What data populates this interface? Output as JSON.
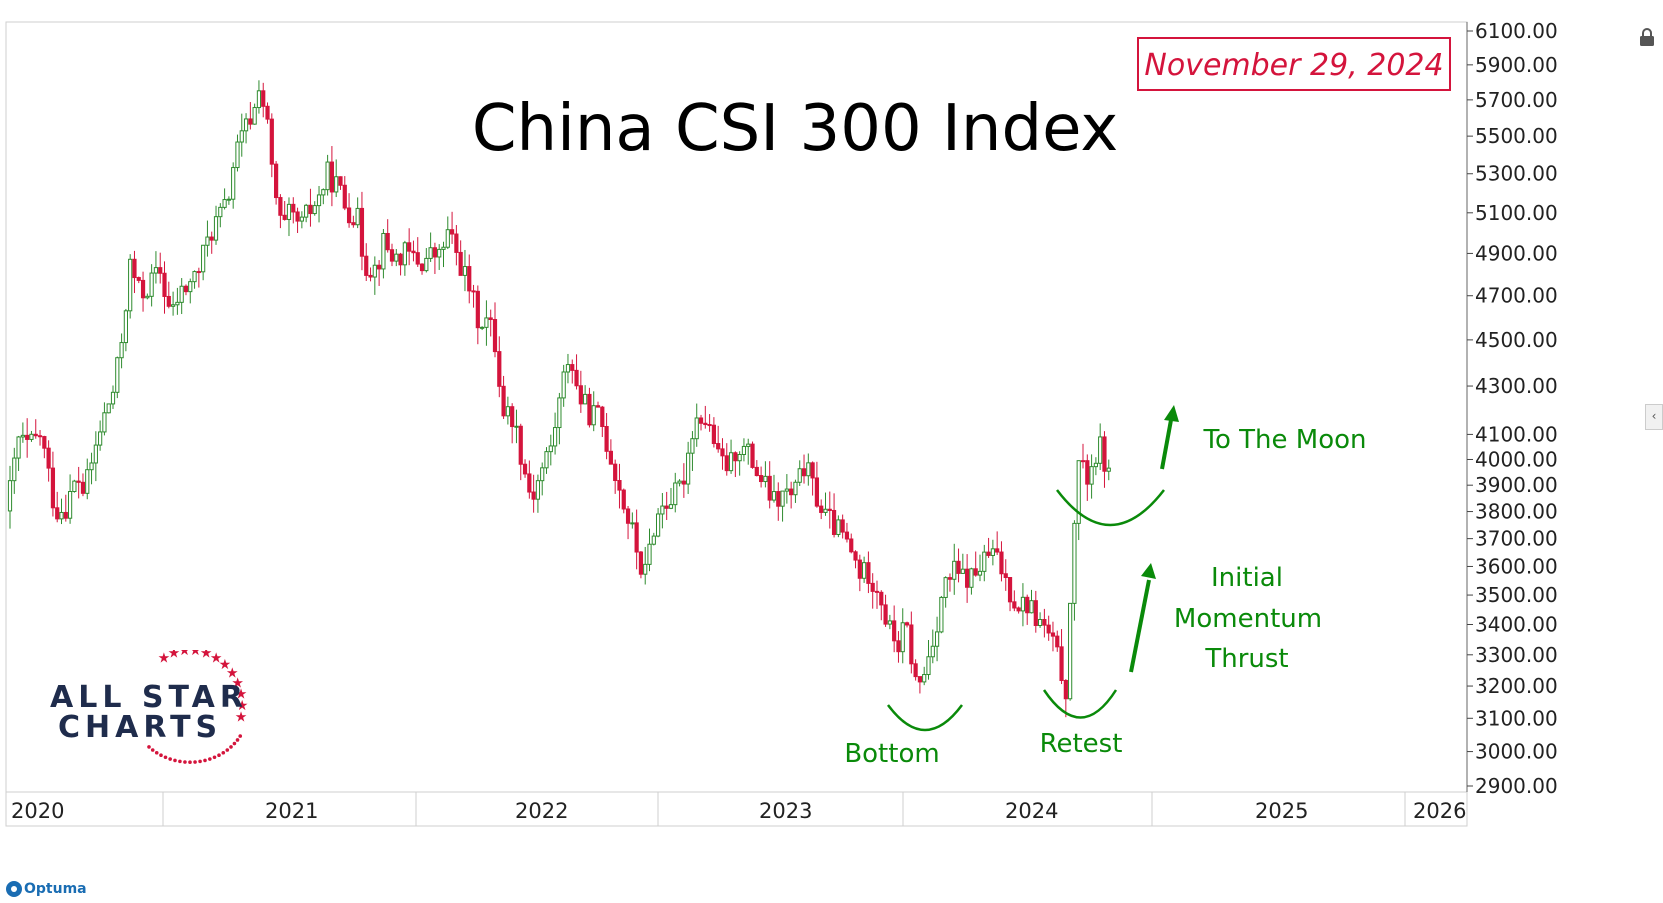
{
  "chart_data": {
    "type": "candlestick",
    "title": "China CSI 300 Index",
    "date_label": "November 29, 2024",
    "ylim": [
      2900,
      6100
    ],
    "y_scale": "log",
    "y_ticks": [
      "6100.00",
      "5900.00",
      "5700.00",
      "5500.00",
      "5300.00",
      "5100.00",
      "4900.00",
      "4700.00",
      "4500.00",
      "4300.00",
      "4100.00",
      "4000.00",
      "3900.00",
      "3800.00",
      "3700.00",
      "3600.00",
      "3500.00",
      "3400.00",
      "3300.00",
      "3200.00",
      "3100.00",
      "3000.00",
      "2900.00"
    ],
    "x_ticks": [
      "2020",
      "2021",
      "2022",
      "2023",
      "2024",
      "2025",
      "2026"
    ],
    "xlim": [
      "2020-01-01",
      "2026-07-01"
    ],
    "up_color": "#2e8b2e",
    "down_color": "#d4143c",
    "close_path": [
      [
        "2020-01-01",
        3880
      ],
      [
        "2020-01-15",
        4080
      ],
      [
        "2020-02-01",
        4050
      ],
      [
        "2020-02-20",
        4100
      ],
      [
        "2020-03-01",
        3980
      ],
      [
        "2020-03-15",
        3800
      ],
      [
        "2020-04-01",
        3820
      ],
      [
        "2020-04-20",
        3930
      ],
      [
        "2020-05-01",
        3870
      ],
      [
        "2020-05-20",
        4050
      ],
      [
        "2020-06-01",
        4160
      ],
      [
        "2020-06-20",
        4300
      ],
      [
        "2020-07-01",
        4500
      ],
      [
        "2020-07-15",
        4840
      ],
      [
        "2020-08-01",
        4700
      ],
      [
        "2020-08-20",
        4770
      ],
      [
        "2020-09-01",
        4820
      ],
      [
        "2020-09-20",
        4600
      ],
      [
        "2020-10-01",
        4690
      ],
      [
        "2020-10-20",
        4760
      ],
      [
        "2020-11-01",
        4800
      ],
      [
        "2020-11-20",
        4980
      ],
      [
        "2020-12-01",
        5050
      ],
      [
        "2020-12-20",
        5140
      ],
      [
        "2021-01-01",
        5380
      ],
      [
        "2021-01-20",
        5550
      ],
      [
        "2021-02-05",
        5660
      ],
      [
        "2021-02-10",
        5800
      ],
      [
        "2021-02-25",
        5530
      ],
      [
        "2021-03-05",
        5250
      ],
      [
        "2021-03-20",
        5000
      ],
      [
        "2021-04-01",
        5090
      ],
      [
        "2021-04-20",
        5030
      ],
      [
        "2021-05-01",
        5100
      ],
      [
        "2021-05-20",
        5180
      ],
      [
        "2021-06-01",
        5300
      ],
      [
        "2021-06-20",
        5230
      ],
      [
        "2021-07-01",
        5130
      ],
      [
        "2021-07-20",
        5080
      ],
      [
        "2021-08-01",
        4850
      ],
      [
        "2021-08-20",
        4830
      ],
      [
        "2021-09-01",
        4950
      ],
      [
        "2021-09-20",
        4870
      ],
      [
        "2021-10-01",
        4900
      ],
      [
        "2021-10-20",
        4880
      ],
      [
        "2021-11-01",
        4850
      ],
      [
        "2021-11-20",
        4900
      ],
      [
        "2021-12-01",
        4880
      ],
      [
        "2021-12-15",
        5000
      ],
      [
        "2022-01-01",
        4880
      ],
      [
        "2022-01-20",
        4730
      ],
      [
        "2022-02-01",
        4600
      ],
      [
        "2022-02-20",
        4580
      ],
      [
        "2022-03-01",
        4500
      ],
      [
        "2022-03-15",
        4200
      ],
      [
        "2022-04-01",
        4170
      ],
      [
        "2022-04-20",
        3950
      ],
      [
        "2022-05-01",
        3850
      ],
      [
        "2022-05-20",
        3980
      ],
      [
        "2022-06-01",
        4050
      ],
      [
        "2022-06-20",
        4300
      ],
      [
        "2022-07-01",
        4450
      ],
      [
        "2022-07-15",
        4270
      ],
      [
        "2022-08-01",
        4190
      ],
      [
        "2022-08-20",
        4170
      ],
      [
        "2022-09-01",
        4060
      ],
      [
        "2022-09-20",
        3900
      ],
      [
        "2022-10-01",
        3800
      ],
      [
        "2022-10-15",
        3700
      ],
      [
        "2022-10-31",
        3550
      ],
      [
        "2022-11-15",
        3740
      ],
      [
        "2022-12-01",
        3830
      ],
      [
        "2022-12-20",
        3860
      ],
      [
        "2023-01-01",
        3900
      ],
      [
        "2023-01-20",
        4150
      ],
      [
        "2023-02-01",
        4180
      ],
      [
        "2023-02-20",
        4100
      ],
      [
        "2023-03-01",
        4000
      ],
      [
        "2023-03-20",
        3970
      ],
      [
        "2023-04-01",
        4060
      ],
      [
        "2023-04-20",
        4020
      ],
      [
        "2023-05-01",
        3960
      ],
      [
        "2023-05-20",
        3880
      ],
      [
        "2023-06-01",
        3830
      ],
      [
        "2023-06-20",
        3870
      ],
      [
        "2023-07-01",
        3850
      ],
      [
        "2023-07-20",
        3980
      ],
      [
        "2023-08-01",
        3900
      ],
      [
        "2023-08-20",
        3790
      ],
      [
        "2023-09-01",
        3760
      ],
      [
        "2023-09-20",
        3710
      ],
      [
        "2023-10-01",
        3660
      ],
      [
        "2023-10-20",
        3570
      ],
      [
        "2023-11-01",
        3580
      ],
      [
        "2023-11-20",
        3510
      ],
      [
        "2023-12-01",
        3400
      ],
      [
        "2023-12-20",
        3330
      ],
      [
        "2024-01-01",
        3400
      ],
      [
        "2024-01-20",
        3180
      ],
      [
        "2024-02-01",
        3250
      ],
      [
        "2024-02-20",
        3400
      ],
      [
        "2024-03-01",
        3520
      ],
      [
        "2024-03-20",
        3580
      ],
      [
        "2024-04-01",
        3560
      ],
      [
        "2024-04-20",
        3560
      ],
      [
        "2024-05-01",
        3600
      ],
      [
        "2024-05-20",
        3650
      ],
      [
        "2024-06-01",
        3610
      ],
      [
        "2024-06-20",
        3510
      ],
      [
        "2024-07-01",
        3470
      ],
      [
        "2024-07-20",
        3470
      ],
      [
        "2024-08-01",
        3420
      ],
      [
        "2024-08-20",
        3370
      ],
      [
        "2024-09-01",
        3310
      ],
      [
        "2024-09-20",
        3180
      ],
      [
        "2024-09-30",
        3700
      ],
      [
        "2024-10-08",
        4000
      ],
      [
        "2024-10-20",
        3920
      ],
      [
        "2024-11-01",
        3990
      ],
      [
        "2024-11-15",
        4050
      ],
      [
        "2024-11-29",
        3900
      ]
    ],
    "annotations": [
      {
        "text": "Bottom",
        "date": "2024-01-15",
        "value": 3000
      },
      {
        "text": "Retest",
        "date": "2024-09-15",
        "value": 3030
      },
      {
        "text": "Initial",
        "date": "2025-03-15",
        "value": 3610
      },
      {
        "text": "Momentum",
        "date": "2025-03-15",
        "value": 3450
      },
      {
        "text": "Thrust",
        "date": "2025-03-15",
        "value": 3300
      },
      {
        "text": "To The Moon",
        "date": "2025-05-15",
        "value": 4070
      }
    ],
    "annotation_color": "#0a8a0a"
  },
  "branding": {
    "logo_line1": "ALL STAR",
    "logo_line2": "CHARTS",
    "footer": "Optuma"
  }
}
